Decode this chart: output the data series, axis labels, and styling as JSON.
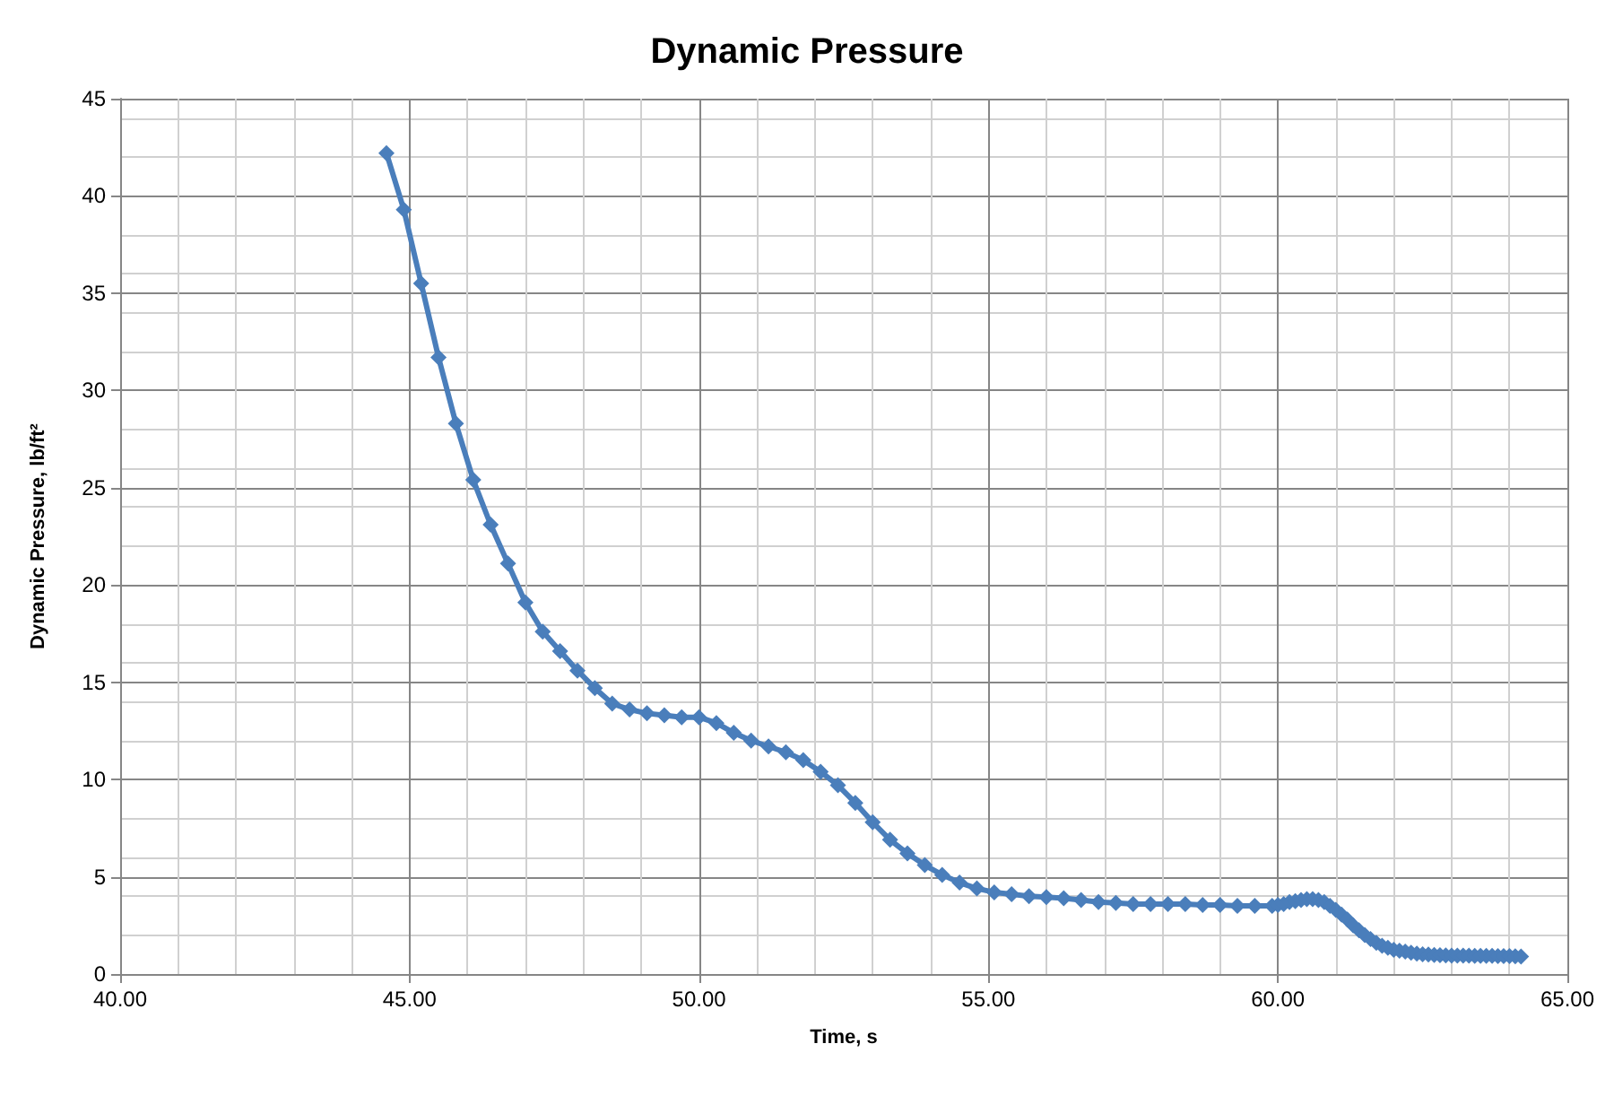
{
  "chart_data": {
    "type": "line",
    "title": "Dynamic Pressure",
    "xlabel": "Time, s",
    "ylabel": "Dynamic Pressure, lb/ft²",
    "xlim": [
      40,
      65
    ],
    "xticks": [
      {
        "value": 40,
        "label": "40.00"
      },
      {
        "value": 45,
        "label": "45.00"
      },
      {
        "value": 50,
        "label": "50.00"
      },
      {
        "value": 55,
        "label": "55.00"
      },
      {
        "value": 60,
        "label": "60.00"
      },
      {
        "value": 65,
        "label": "65.00"
      }
    ],
    "ylim": [
      0,
      45
    ],
    "yticks": [
      0,
      5,
      10,
      15,
      20,
      25,
      30,
      35,
      40,
      45
    ],
    "grid": true,
    "marker": "diamond",
    "line_style": "solid",
    "series": [
      {
        "color": "#4a7ebb",
        "x": [
          44.6,
          44.9,
          45.2,
          45.5,
          45.8,
          46.1,
          46.4,
          46.7,
          47.0,
          47.3,
          47.6,
          47.9,
          48.2,
          48.5,
          48.8,
          49.1,
          49.4,
          49.7,
          50.0,
          50.3,
          50.6,
          50.9,
          51.2,
          51.5,
          51.8,
          52.1,
          52.4,
          52.7,
          53.0,
          53.3,
          53.6,
          53.9,
          54.2,
          54.5,
          54.8,
          55.1,
          55.4,
          55.7,
          56.0,
          56.3,
          56.6,
          56.9,
          57.2,
          57.5,
          57.8,
          58.1,
          58.4,
          58.7,
          59.0,
          59.3,
          59.6,
          59.9,
          60.0,
          60.1,
          60.2,
          60.3,
          60.4,
          60.5,
          60.6,
          60.7,
          60.8,
          60.9,
          61.0,
          61.1,
          61.2,
          61.3,
          61.4,
          61.5,
          61.6,
          61.7,
          61.8,
          61.9,
          62.0,
          62.1,
          62.2,
          62.3,
          62.4,
          62.5,
          62.6,
          62.7,
          62.8,
          62.9,
          63.0,
          63.1,
          63.2,
          63.3,
          63.4,
          63.5,
          63.6,
          63.7,
          63.8,
          63.9,
          64.0,
          64.1,
          64.2
        ],
        "values": [
          42.2,
          39.3,
          35.5,
          31.7,
          28.3,
          25.4,
          23.1,
          21.1,
          19.1,
          17.6,
          16.6,
          15.6,
          14.7,
          13.9,
          13.6,
          13.4,
          13.3,
          13.2,
          13.2,
          12.9,
          12.4,
          12.0,
          11.7,
          11.4,
          11.0,
          10.4,
          9.7,
          8.8,
          7.8,
          6.9,
          6.2,
          5.6,
          5.1,
          4.7,
          4.4,
          4.2,
          4.1,
          4.0,
          3.95,
          3.9,
          3.8,
          3.7,
          3.65,
          3.6,
          3.6,
          3.6,
          3.6,
          3.55,
          3.55,
          3.5,
          3.5,
          3.5,
          3.55,
          3.6,
          3.7,
          3.75,
          3.8,
          3.85,
          3.85,
          3.8,
          3.7,
          3.5,
          3.3,
          3.05,
          2.8,
          2.5,
          2.25,
          2.0,
          1.8,
          1.6,
          1.45,
          1.35,
          1.25,
          1.2,
          1.15,
          1.1,
          1.05,
          1.02,
          1.0,
          0.98,
          0.97,
          0.96,
          0.95,
          0.95,
          0.94,
          0.94,
          0.93,
          0.93,
          0.93,
          0.93,
          0.92,
          0.92,
          0.92,
          0.91,
          0.9
        ]
      }
    ]
  }
}
